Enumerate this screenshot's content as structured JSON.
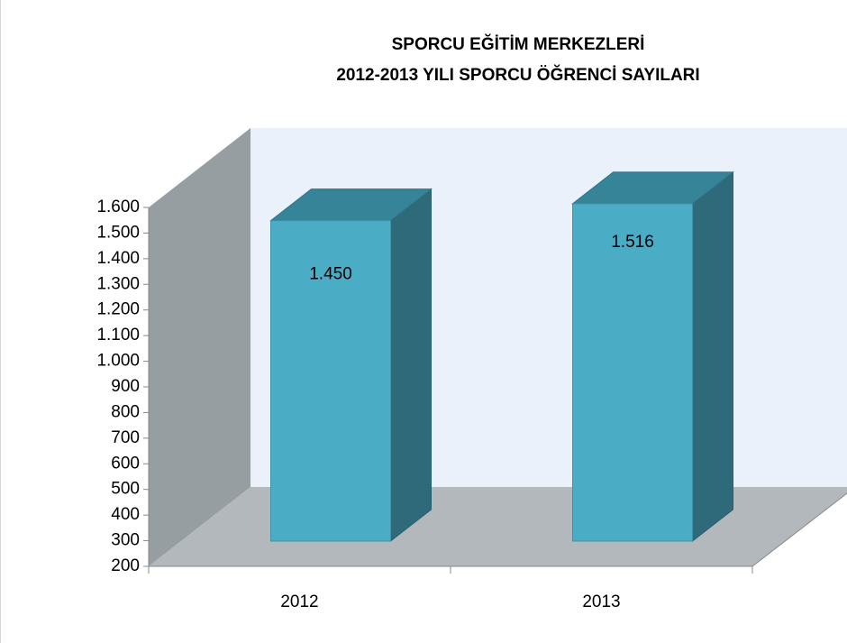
{
  "chart_data": {
    "type": "bar3d",
    "title": "SPORCU EĞİTİM MERKEZLERİ",
    "subtitle": "2012-2013 YILI SPORCU ÖĞRENCİ SAYILARI",
    "categories": [
      "2012",
      "2013"
    ],
    "values": [
      1450,
      1516
    ],
    "value_labels": [
      "1.450",
      "1.516"
    ],
    "color": "#4bacc6",
    "ylim": [
      200,
      1600
    ],
    "yticks": [
      200,
      300,
      400,
      500,
      600,
      700,
      800,
      900,
      {
        "value": 1000,
        "label": "1.000"
      },
      {
        "value": 1100,
        "label": "1.100"
      },
      {
        "value": 1200,
        "label": "1.200"
      },
      {
        "value": 1300,
        "label": "1.300"
      },
      {
        "value": 1400,
        "label": "1.400"
      },
      {
        "value": 1500,
        "label": "1.500"
      },
      {
        "value": 1600,
        "label": "1.600"
      }
    ],
    "grid": false
  }
}
